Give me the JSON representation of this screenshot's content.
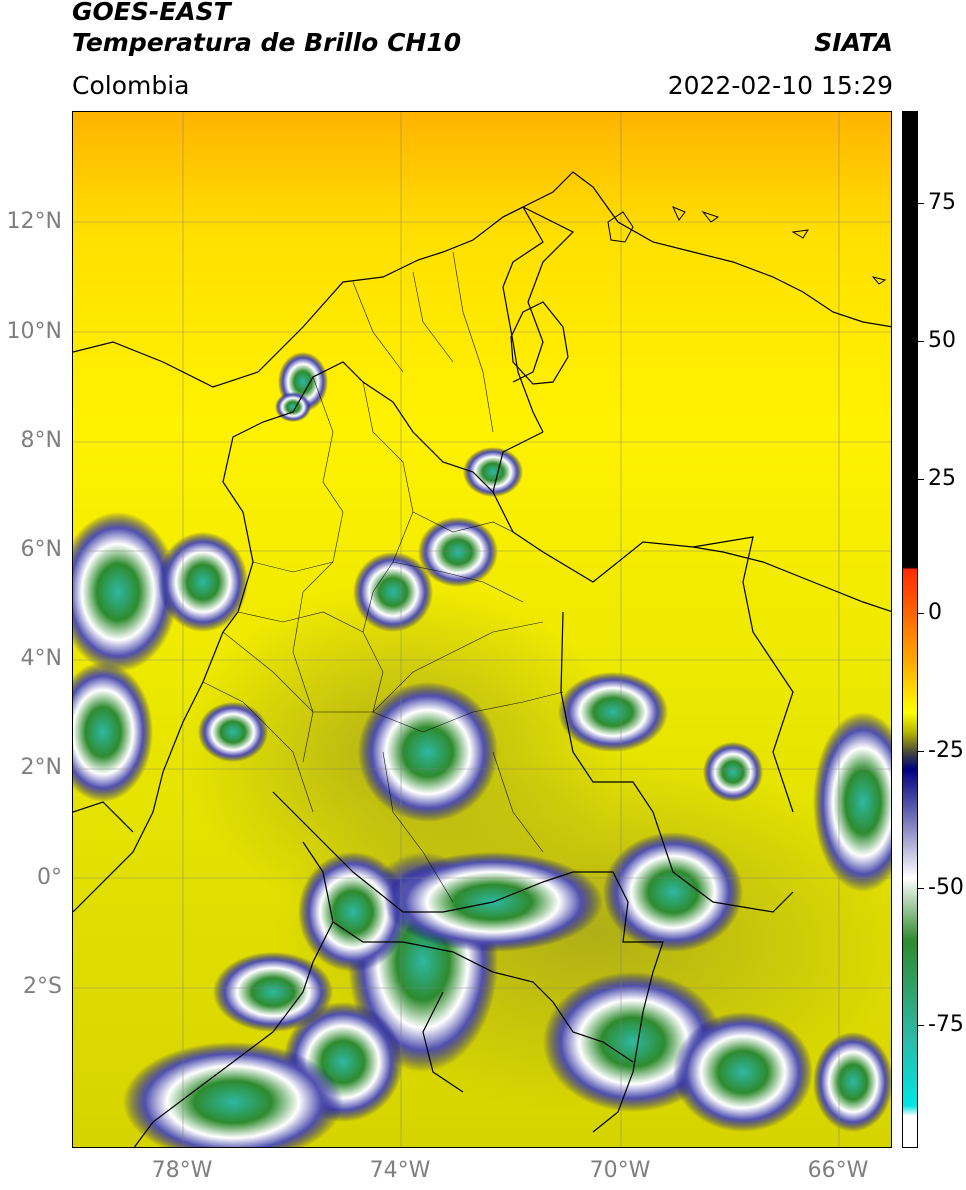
{
  "header": {
    "title_line1": "GOES-EAST",
    "title_line2": "Temperatura de Brillo CH10",
    "organization": "SIATA",
    "region": "Colombia",
    "timestamp": "2022-02-10 15:29"
  },
  "map": {
    "latitude_labels": [
      "12°N",
      "10°N",
      "8°N",
      "6°N",
      "4°N",
      "2°N",
      "0°",
      "2°S"
    ],
    "longitude_labels": [
      "78°W",
      "74°W",
      "70°W",
      "66°W"
    ],
    "gridlines": true
  },
  "colorbar": {
    "labels": [
      "75",
      "50",
      "25",
      "0",
      "-25",
      "-50",
      "-75"
    ],
    "colors": {
      "top": "#000000",
      "warm": "#ff2a00",
      "orange": "#ffa800",
      "yellow": "#ffff00",
      "olive": "#b3b300",
      "navy": "#000080",
      "white": "#ffffff",
      "green": "#2e8b2e",
      "teal": "#2eb8a3",
      "cyan": "#00e6e6"
    }
  }
}
